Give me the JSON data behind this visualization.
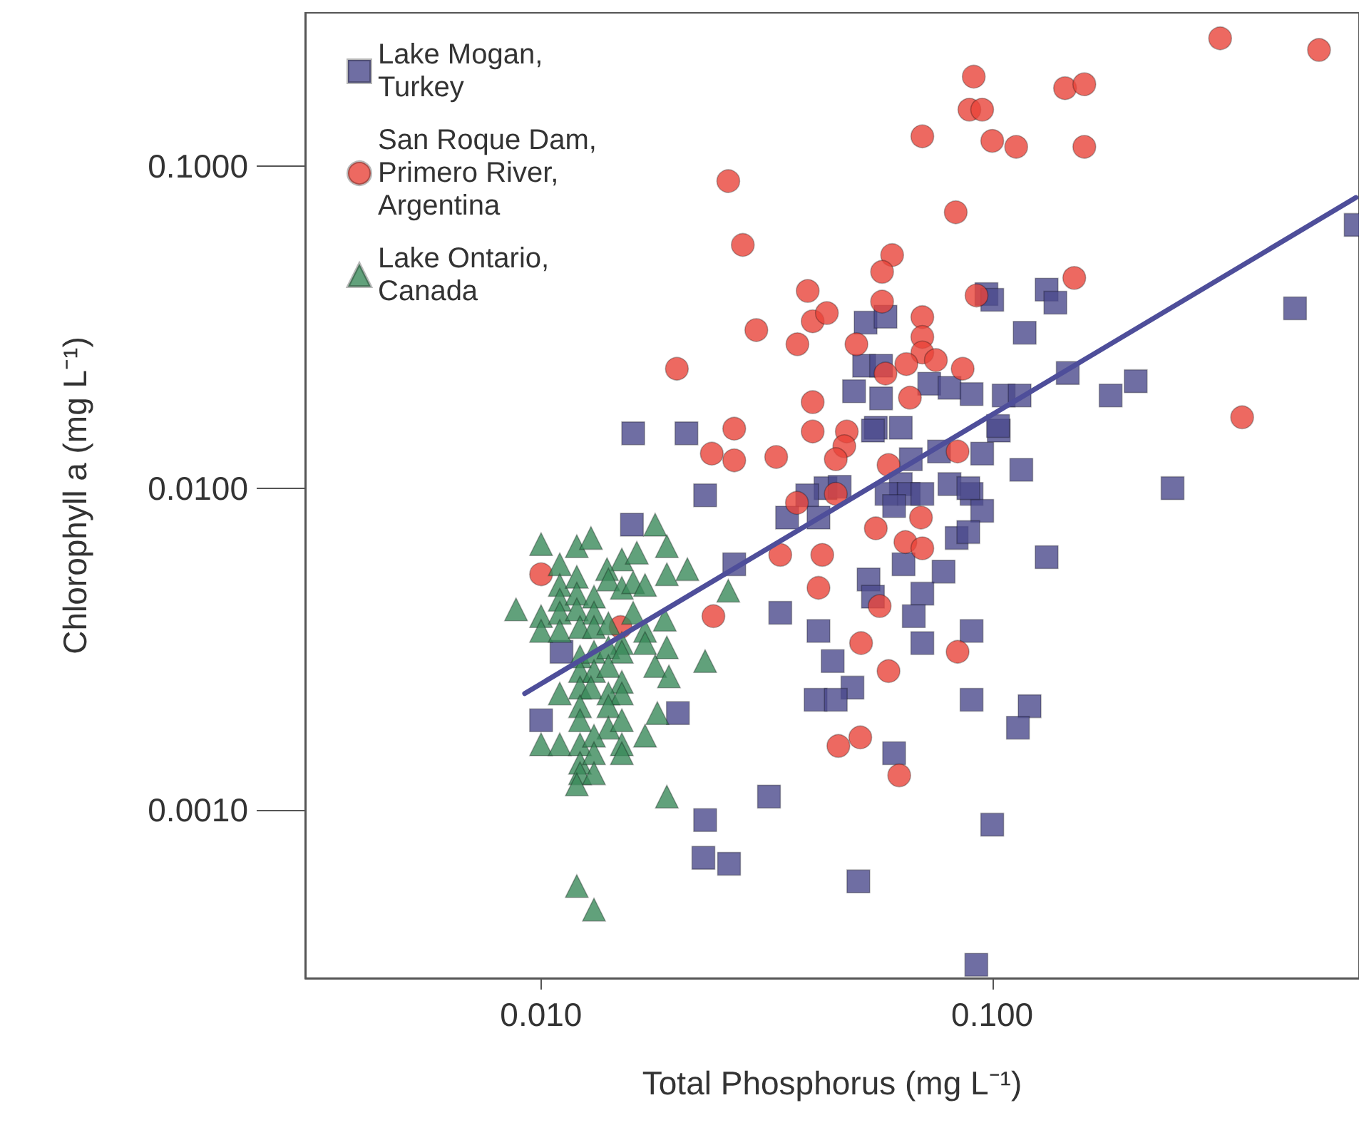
{
  "chart_data": {
    "type": "scatter",
    "xlabel": "Total Phosphorus (mg L⁻¹)",
    "ylabel": "Chlorophyll a (mg L⁻¹)",
    "log": "xy",
    "grid": false,
    "legend": "top left",
    "xlim": [
      0.003,
      0.65
    ],
    "ylim": [
      0.0003,
      0.3
    ],
    "xticks": [
      {
        "value": 0.01,
        "label": "0.010"
      },
      {
        "value": 0.1,
        "label": "0.100"
      }
    ],
    "yticks": [
      {
        "value": 0.001,
        "label": "0.0010"
      },
      {
        "value": 0.01,
        "label": "0.0100"
      },
      {
        "value": 0.1,
        "label": "0.1000"
      }
    ],
    "series": [
      {
        "name": "Lake Mogan, Turkey",
        "color": "#4b4a8c",
        "marker": "square",
        "x": [
          0.016,
          0.021,
          0.0231,
          0.0524,
          0.058,
          0.052,
          0.0567,
          0.0494,
          0.0567,
          0.0725,
          0.0804,
          0.09,
          0.0552,
          0.0627,
          0.066,
          0.0762,
          0.095,
          0.0427,
          0.0627,
          0.0804,
          0.0971,
          0.1034,
          0.0544,
          0.116,
          0.0389,
          0.0459,
          0.0351,
          0.0412,
          0.0583,
          0.0653,
          0.07,
          0.0606,
          0.09,
          0.095,
          0.0834,
          0.0885,
          0.132,
          0.0636,
          0.078,
          0.0532,
          0.0544,
          0.07,
          0.067,
          0.0339,
          0.0412,
          0.07,
          0.09,
          0.0443,
          0.049,
          0.0406,
          0.045,
          0.09,
          0.121,
          0.114,
          0.0606,
          0.032,
          0.1,
          0.0505,
          0.0922,
          0.0229,
          0.0261,
          0.0159,
          0.0268,
          0.0111,
          0.01,
          0.0201,
          0.0231,
          0.1,
          0.132,
          0.138,
          0.118,
          0.147,
          0.208,
          0.183,
          0.106,
          0.115,
          0.103,
          0.251,
          0.0885,
          0.469,
          0.639
        ],
        "values": [
          0.0148,
          0.0148,
          0.0095,
          0.0327,
          0.0341,
          0.024,
          0.024,
          0.02,
          0.019,
          0.0211,
          0.0205,
          0.0196,
          0.0154,
          0.0154,
          0.0123,
          0.013,
          0.0128,
          0.01,
          0.0103,
          0.0103,
          0.0401,
          0.0151,
          0.0151,
          0.0114,
          0.0095,
          0.0101,
          0.0081,
          0.0081,
          0.0096,
          0.0096,
          0.0096,
          0.0088,
          0.0096,
          0.0085,
          0.007,
          0.0073,
          0.0061,
          0.0058,
          0.0055,
          0.0052,
          0.0046,
          0.0047,
          0.004,
          0.0041,
          0.0036,
          0.0033,
          0.0036,
          0.0029,
          0.0024,
          0.0022,
          0.0022,
          0.0022,
          0.0021,
          0.0018,
          0.0015,
          0.0011,
          0.0009,
          0.0006,
          0.00033,
          0.00071,
          0.00068,
          0.0077,
          0.0058,
          0.0031,
          0.0019,
          0.002,
          0.00093,
          0.0385,
          0.0414,
          0.0377,
          0.0304,
          0.0228,
          0.0215,
          0.0194,
          0.0194,
          0.0194,
          0.0156,
          0.01,
          0.01,
          0.0362,
          0.0658
        ]
      },
      {
        "name": "San Roque Dam, Primero River, Argentina",
        "color": "#e8443a",
        "marker": "circle",
        "x": [
          0.32,
          0.53,
          0.091,
          0.145,
          0.16,
          0.089,
          0.095,
          0.1,
          0.113,
          0.16,
          0.07,
          0.026,
          0.083,
          0.028,
          0.06,
          0.057,
          0.039,
          0.057,
          0.07,
          0.04,
          0.043,
          0.03,
          0.037,
          0.05,
          0.07,
          0.07,
          0.075,
          0.0645,
          0.058,
          0.086,
          0.02,
          0.04,
          0.0657,
          0.0923,
          0.152,
          0.358,
          0.0268,
          0.0476,
          0.047,
          0.045,
          0.0239,
          0.0268,
          0.0332,
          0.0589,
          0.0838,
          0.0369,
          0.045,
          0.0552,
          0.0695,
          0.0642,
          0.07,
          0.0339,
          0.042,
          0.0412,
          0.0563,
          0.0512,
          0.0589,
          0.0838,
          0.051,
          0.0456,
          0.0622,
          0.01,
          0.015,
          0.0241,
          0.04
        ],
        "values": [
          0.25,
          0.23,
          0.19,
          0.175,
          0.18,
          0.15,
          0.15,
          0.12,
          0.115,
          0.115,
          0.124,
          0.09,
          0.072,
          0.057,
          0.053,
          0.047,
          0.041,
          0.038,
          0.034,
          0.033,
          0.035,
          0.031,
          0.028,
          0.028,
          0.0295,
          0.0264,
          0.025,
          0.0243,
          0.0227,
          0.0235,
          0.0235,
          0.0185,
          0.0191,
          0.0397,
          0.045,
          0.0166,
          0.0153,
          0.015,
          0.0135,
          0.0123,
          0.0128,
          0.0122,
          0.0125,
          0.0118,
          0.013,
          0.009,
          0.0096,
          0.0075,
          0.0081,
          0.0068,
          0.0065,
          0.0062,
          0.0062,
          0.0049,
          0.0043,
          0.0033,
          0.0027,
          0.0031,
          0.00168,
          0.00158,
          0.00128,
          0.0054,
          0.0037,
          0.004,
          0.015
        ]
      },
      {
        "name": "Lake Ontario, Canada",
        "color": "#3a8a5a",
        "marker": "triangle",
        "x": [
          0.01,
          0.012,
          0.0129,
          0.0179,
          0.019,
          0.0211,
          0.019,
          0.011,
          0.0151,
          0.0163,
          0.014,
          0.011,
          0.012,
          0.011,
          0.012,
          0.0131,
          0.0141,
          0.0151,
          0.016,
          0.017,
          0.0088,
          0.01,
          0.011,
          0.012,
          0.0131,
          0.01,
          0.011,
          0.0122,
          0.0131,
          0.0141,
          0.016,
          0.0188,
          0.017,
          0.026,
          0.0151,
          0.017,
          0.0122,
          0.0131,
          0.0141,
          0.0151,
          0.019,
          0.0179,
          0.0192,
          0.0122,
          0.0131,
          0.0141,
          0.0151,
          0.011,
          0.0122,
          0.0129,
          0.0141,
          0.0151,
          0.0231,
          0.0122,
          0.0141,
          0.0122,
          0.0181,
          0.0141,
          0.0151,
          0.01,
          0.011,
          0.0122,
          0.0131,
          0.017,
          0.0151,
          0.0122,
          0.0131,
          0.0151,
          0.0122,
          0.0131,
          0.012,
          0.019,
          0.012,
          0.0131
        ],
        "values": [
          0.0067,
          0.0066,
          0.007,
          0.0077,
          0.0066,
          0.0056,
          0.0054,
          0.0058,
          0.006,
          0.0063,
          0.0056,
          0.005,
          0.0053,
          0.0045,
          0.0047,
          0.0046,
          0.0052,
          0.0049,
          0.0051,
          0.005,
          0.0042,
          0.004,
          0.0041,
          0.0042,
          0.0041,
          0.0036,
          0.0036,
          0.0037,
          0.0037,
          0.0038,
          0.0041,
          0.0039,
          0.0036,
          0.0048,
          0.0033,
          0.0033,
          0.003,
          0.0031,
          0.0032,
          0.0031,
          0.0032,
          0.0028,
          0.0026,
          0.0027,
          0.0027,
          0.0028,
          0.0025,
          0.0023,
          0.0024,
          0.0024,
          0.0023,
          0.0023,
          0.0029,
          0.0021,
          0.0021,
          0.0019,
          0.002,
          0.0018,
          0.0019,
          0.0016,
          0.0016,
          0.0016,
          0.0017,
          0.0017,
          0.0016,
          0.0014,
          0.0015,
          0.0015,
          0.0013,
          0.0013,
          0.0012,
          0.0011,
          0.00058,
          0.00049
        ]
      },
      {
        "type": "line",
        "color": "#4e4e9a",
        "marker": "none",
        "line_style": "solid",
        "x": [
          0.0092,
          0.64
        ],
        "values": [
          0.0023,
          0.08
        ]
      }
    ]
  }
}
